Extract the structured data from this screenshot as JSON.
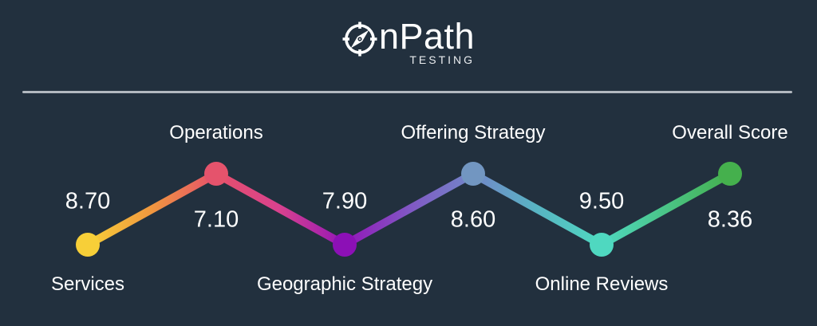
{
  "app": {
    "background_color": "#22303E",
    "divider_color": "#B2B8BF",
    "text_color": "#FFFFFF"
  },
  "logo": {
    "icon": "compass-icon",
    "brand": "OnPath",
    "brand_visible_text": "nPath",
    "tagline": "TESTING"
  },
  "chart_data": {
    "type": "line",
    "title": "",
    "xlabel": "",
    "ylabel": "",
    "categories": [
      "Services",
      "Operations",
      "Geographic Strategy",
      "Offering Strategy",
      "Online Reviews",
      "Overall Score"
    ],
    "values": [
      8.7,
      7.1,
      7.9,
      8.6,
      9.5,
      8.36
    ],
    "value_labels": [
      "8.70",
      "7.10",
      "7.90",
      "8.60",
      "9.50",
      "8.36"
    ],
    "point_colors": [
      "#F7CF38",
      "#E5536C",
      "#8C10B6",
      "#7296C1",
      "#4FD8C0",
      "#45B04D"
    ],
    "line_gradient": [
      {
        "offset": 0.0,
        "color": "#F7CF38"
      },
      {
        "offset": 0.1,
        "color": "#F0973F"
      },
      {
        "offset": 0.2,
        "color": "#E6506B"
      },
      {
        "offset": 0.3,
        "color": "#D8418F"
      },
      {
        "offset": 0.4,
        "color": "#9316B8"
      },
      {
        "offset": 0.5,
        "color": "#8157C4"
      },
      {
        "offset": 0.6,
        "color": "#7287C9"
      },
      {
        "offset": 0.7,
        "color": "#58B5C3"
      },
      {
        "offset": 0.8,
        "color": "#4FD8C0"
      },
      {
        "offset": 1.0,
        "color": "#45B04D"
      }
    ],
    "layout_hint": "zigzag line: even-index points low with value above and category below; odd-index points high with category above and value below; legend off; no axes"
  }
}
